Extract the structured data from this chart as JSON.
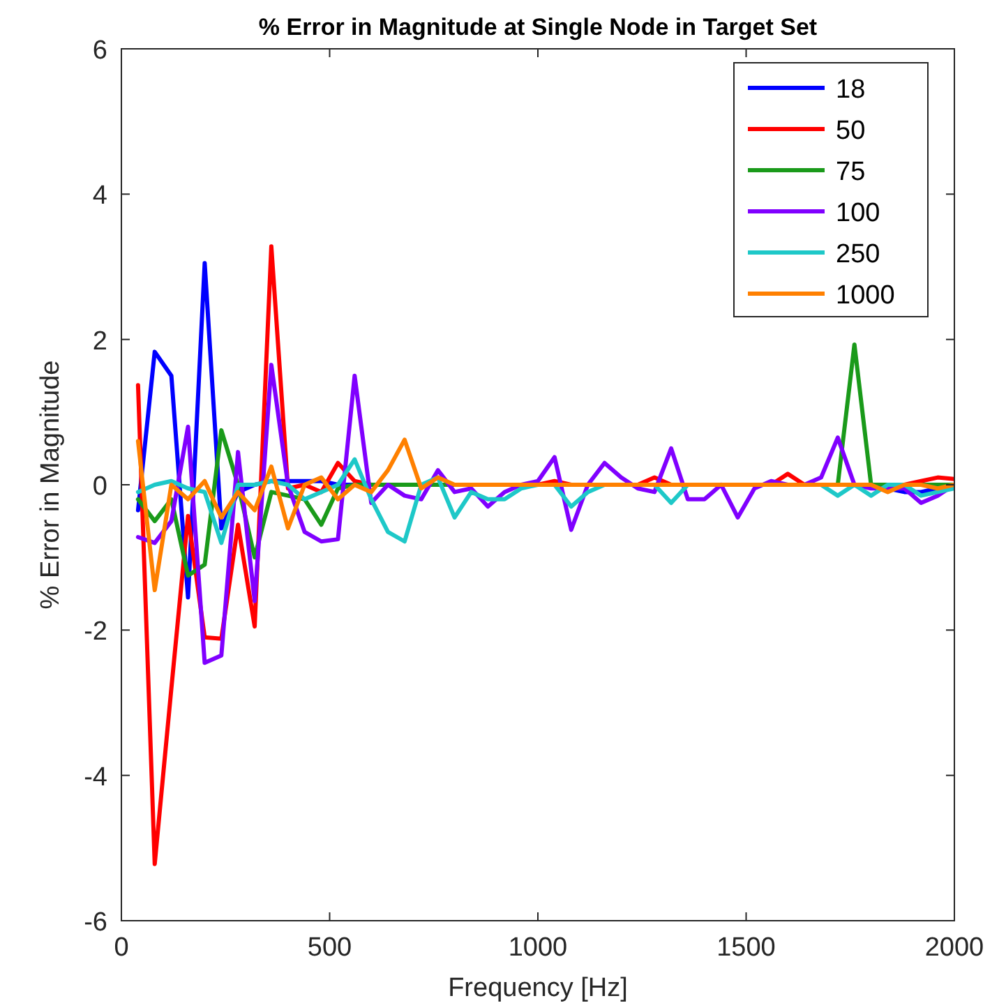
{
  "chart_data": {
    "type": "line",
    "title": "% Error in Magnitude at Single Node in Target Set",
    "xlabel": "Frequency [Hz]",
    "ylabel": "% Error in Magnitude",
    "x": [
      40,
      80,
      120,
      160,
      200,
      240,
      280,
      320,
      360,
      400,
      440,
      480,
      520,
      560,
      600,
      640,
      680,
      720,
      760,
      800,
      840,
      880,
      920,
      960,
      1000,
      1040,
      1080,
      1120,
      1160,
      1200,
      1240,
      1280,
      1320,
      1360,
      1400,
      1440,
      1480,
      1520,
      1560,
      1600,
      1640,
      1680,
      1720,
      1760,
      1800,
      1840,
      1880,
      1920,
      1960,
      2000
    ],
    "xlim": [
      0,
      2000
    ],
    "xticks": [
      0,
      500,
      1000,
      1500,
      2000
    ],
    "ylim": [
      -6,
      6
    ],
    "yticks": [
      -6,
      -4,
      -2,
      0,
      2,
      4,
      6
    ],
    "grid": false,
    "legend": "top right",
    "line_style": "solid",
    "marker": "none",
    "series": [
      {
        "name": "18",
        "color": "#0000ff",
        "values": [
          -0.35,
          1.83,
          1.5,
          -1.55,
          3.05,
          -0.6,
          -0.1,
          0,
          0.05,
          0.05,
          0.05,
          0.05,
          0,
          0,
          0,
          0,
          0,
          0,
          0,
          0,
          0,
          0,
          0,
          0,
          0,
          0,
          0,
          0,
          0,
          0,
          0,
          0,
          0,
          0,
          0,
          0,
          0,
          0,
          0,
          0,
          0,
          0,
          0,
          0,
          0,
          -0.05,
          -0.1,
          -0.1,
          -0.05,
          0
        ]
      },
      {
        "name": "50",
        "color": "#ff0000",
        "values": [
          1.37,
          -5.22,
          -2.8,
          -0.43,
          -2.1,
          -2.12,
          -0.55,
          -1.95,
          3.28,
          -0.05,
          0,
          -0.1,
          0.3,
          0.05,
          0,
          0,
          0,
          0,
          0,
          0,
          0,
          0,
          0,
          0,
          0,
          0.05,
          0,
          0,
          0,
          0,
          0,
          0.1,
          0,
          0,
          0,
          0,
          0,
          0,
          0,
          0.15,
          0,
          0,
          0,
          0,
          0,
          0,
          0,
          0.05,
          0.1,
          0.08
        ]
      },
      {
        "name": "75",
        "color": "#1a9a1a",
        "values": [
          -0.2,
          -0.5,
          -0.2,
          -1.25,
          -1.1,
          0.75,
          0,
          -1.0,
          -0.1,
          -0.15,
          -0.2,
          -0.55,
          -0.05,
          0,
          0,
          0,
          0,
          0,
          0,
          0,
          0,
          0,
          0,
          0,
          0,
          0,
          0,
          0,
          0,
          0,
          0,
          0,
          0,
          0,
          0,
          0,
          0,
          0,
          0,
          0,
          0,
          0,
          0,
          1.93,
          0,
          0,
          0,
          0,
          0,
          0
        ]
      },
      {
        "name": "100",
        "color": "#8000ff",
        "values": [
          -0.72,
          -0.8,
          -0.5,
          0.8,
          -2.45,
          -2.35,
          0.45,
          -1.6,
          1.65,
          0,
          -0.65,
          -0.78,
          -0.75,
          1.5,
          -0.25,
          0,
          -0.15,
          -0.2,
          0.2,
          -0.1,
          -0.05,
          -0.3,
          -0.1,
          0,
          0.05,
          0.38,
          -0.62,
          0,
          0.3,
          0.1,
          -0.05,
          -0.1,
          0.5,
          -0.2,
          -0.2,
          0,
          -0.45,
          -0.05,
          0.05,
          0,
          0,
          0.1,
          0.65,
          0,
          -0.05,
          -0.05,
          -0.05,
          -0.25,
          -0.15,
          0
        ]
      },
      {
        "name": "250",
        "color": "#1ec8c8",
        "values": [
          -0.1,
          0,
          0.05,
          -0.05,
          -0.1,
          -0.8,
          0,
          0,
          0.05,
          0,
          -0.2,
          -0.1,
          0,
          0.35,
          -0.2,
          -0.65,
          -0.78,
          0,
          0.1,
          -0.45,
          -0.1,
          -0.2,
          -0.2,
          -0.05,
          0,
          0,
          -0.3,
          -0.1,
          0,
          0,
          0,
          0,
          -0.25,
          0,
          0,
          0,
          0,
          0,
          0,
          0,
          0,
          0,
          -0.15,
          0,
          -0.15,
          0,
          0,
          -0.15,
          -0.1,
          -0.05
        ]
      },
      {
        "name": "1000",
        "color": "#ff8000",
        "values": [
          0.6,
          -1.45,
          0,
          -0.2,
          0.05,
          -0.45,
          -0.1,
          -0.35,
          0.25,
          -0.6,
          0,
          0.1,
          -0.2,
          0,
          -0.1,
          0.2,
          0.62,
          -0.05,
          0.1,
          0,
          0,
          0,
          0,
          0,
          0,
          0,
          0,
          0,
          0,
          0,
          0,
          0,
          0,
          0,
          0,
          0,
          0,
          0,
          0,
          0,
          0,
          0,
          0,
          0,
          0,
          -0.1,
          0,
          0,
          -0.05,
          0
        ]
      }
    ]
  }
}
